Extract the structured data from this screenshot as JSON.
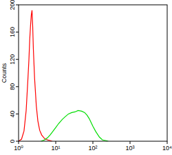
{
  "chart_data": {
    "type": "line",
    "log": "x",
    "grid": false,
    "y_label": "Counts",
    "xlim": [
      1,
      10000
    ],
    "xticks": [
      {
        "value": 1,
        "label": "10⁰"
      },
      {
        "value": 10,
        "label": "10¹"
      },
      {
        "value": 100,
        "label": "10²"
      },
      {
        "value": 1000,
        "label": "10³"
      },
      {
        "value": 10000,
        "label": "10⁴"
      }
    ],
    "ylim": [
      0,
      200
    ],
    "yticks": [
      0,
      40,
      80,
      120,
      160,
      200
    ],
    "series": [
      {
        "color": "#ff0000",
        "x": [
          1.0,
          1.2,
          1.4,
          1.6,
          1.8,
          1.9,
          2.0,
          2.1,
          2.2,
          2.3,
          2.4,
          2.5,
          2.7,
          3.0,
          3.3,
          3.7,
          4.2,
          5,
          6,
          7,
          8
        ],
        "values": [
          0,
          3,
          15,
          45,
          95,
          120,
          150,
          170,
          185,
          192,
          168,
          135,
          92,
          52,
          30,
          16,
          9,
          4,
          2,
          1,
          0
        ]
      },
      {
        "color": "#00dd00",
        "x": [
          4,
          5,
          6,
          7,
          8,
          10,
          12,
          15,
          18,
          22,
          27,
          33,
          40,
          50,
          60,
          70,
          80,
          100,
          120,
          150,
          180,
          220,
          260
        ],
        "values": [
          0,
          2,
          5,
          9,
          13,
          20,
          26,
          32,
          36,
          40,
          42,
          43,
          45,
          44,
          42,
          38,
          33,
          22,
          14,
          6,
          2,
          1,
          0
        ]
      }
    ]
  }
}
